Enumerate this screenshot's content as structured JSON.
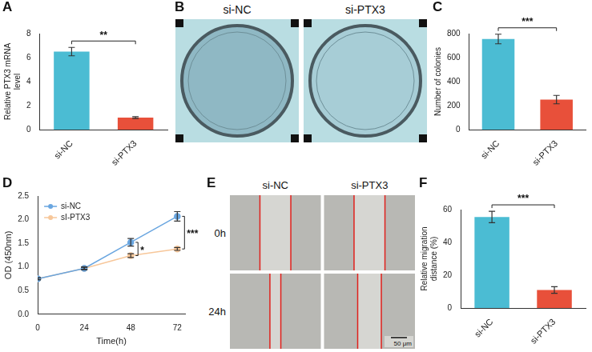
{
  "chart_data": [
    {
      "panel": "A",
      "type": "bar",
      "y_label": "Relative PTX3 mRNA level",
      "categories": [
        "si-NC",
        "si-PTX3"
      ],
      "values": [
        6.5,
        1.0
      ],
      "errors": [
        0.35,
        0.08
      ],
      "colors": [
        "#4bbcd3",
        "#e8503a"
      ],
      "ylim": [
        0,
        8
      ],
      "yticks": [
        0,
        2,
        4,
        6,
        8
      ],
      "grid": false,
      "annotations": [
        {
          "text": "**",
          "between": [
            "si-NC",
            "si-PTX3"
          ]
        }
      ]
    },
    {
      "panel": "C",
      "type": "bar",
      "y_label": "Number of colonies",
      "categories": [
        "si-NC",
        "si-PTX3"
      ],
      "values": [
        755,
        250
      ],
      "errors": [
        40,
        35
      ],
      "colors": [
        "#4bbcd3",
        "#e8503a"
      ],
      "ylim": [
        0,
        800
      ],
      "yticks": [
        0,
        200,
        400,
        600,
        800
      ],
      "grid": false,
      "annotations": [
        {
          "text": "***",
          "between": [
            "si-NC",
            "si-PTX3"
          ]
        }
      ]
    },
    {
      "panel": "D",
      "type": "line",
      "x_label": "Time(h)",
      "y_label": "OD (450nm)",
      "x": [
        0,
        24,
        48,
        72
      ],
      "series": [
        {
          "name": "si-NC",
          "color": "#6aa6e0",
          "marker": "circle",
          "line_style": "solid",
          "values": [
            0.75,
            0.97,
            1.52,
            2.07
          ],
          "errors": [
            0.02,
            0.03,
            0.08,
            0.1
          ]
        },
        {
          "name": "sI-PTX3",
          "color": "#f7c79a",
          "marker": "circle",
          "line_style": "solid",
          "values": [
            0.75,
            0.97,
            1.24,
            1.38
          ],
          "errors": [
            0.02,
            0.02,
            0.04,
            0.03
          ]
        }
      ],
      "xlim": [
        0,
        76
      ],
      "xticks": [
        0,
        24,
        48,
        72
      ],
      "ylim": [
        0,
        2.5
      ],
      "yticks": [
        {
          "value": 0,
          "label": "0.0"
        },
        {
          "value": 0.5,
          "label": "0.5"
        },
        {
          "value": 1,
          "label": "1.0"
        },
        {
          "value": 1.5,
          "label": "1.5"
        },
        {
          "value": 2,
          "label": "2.0"
        },
        {
          "value": 2.5,
          "label": "2.5"
        }
      ],
      "grid": false,
      "legend": "upper-left",
      "annotations": [
        {
          "text": "*",
          "x": 48
        },
        {
          "text": "***",
          "x": 72
        }
      ]
    },
    {
      "panel": "F",
      "type": "bar",
      "y_label": "Relative migration distance (%)",
      "categories": [
        "si-NC",
        "si-PTX3"
      ],
      "values": [
        55.5,
        11
      ],
      "errors": [
        3.5,
        2
      ],
      "colors": [
        "#4bbcd3",
        "#e8503a"
      ],
      "ylim": [
        0,
        60
      ],
      "yticks": [
        0,
        20,
        40,
        60
      ],
      "grid": false,
      "annotations": [
        {
          "text": "***",
          "between": [
            "si-NC",
            "si-PTX3"
          ]
        }
      ]
    }
  ],
  "image_panels": [
    {
      "panel": "B",
      "columns": [
        "si-NC",
        "si-PTX3"
      ]
    },
    {
      "panel": "E",
      "columns": [
        "si-NC",
        "si-PTX3"
      ],
      "rows": [
        "0h",
        "24h"
      ],
      "scale_bar": "50 μm"
    }
  ]
}
